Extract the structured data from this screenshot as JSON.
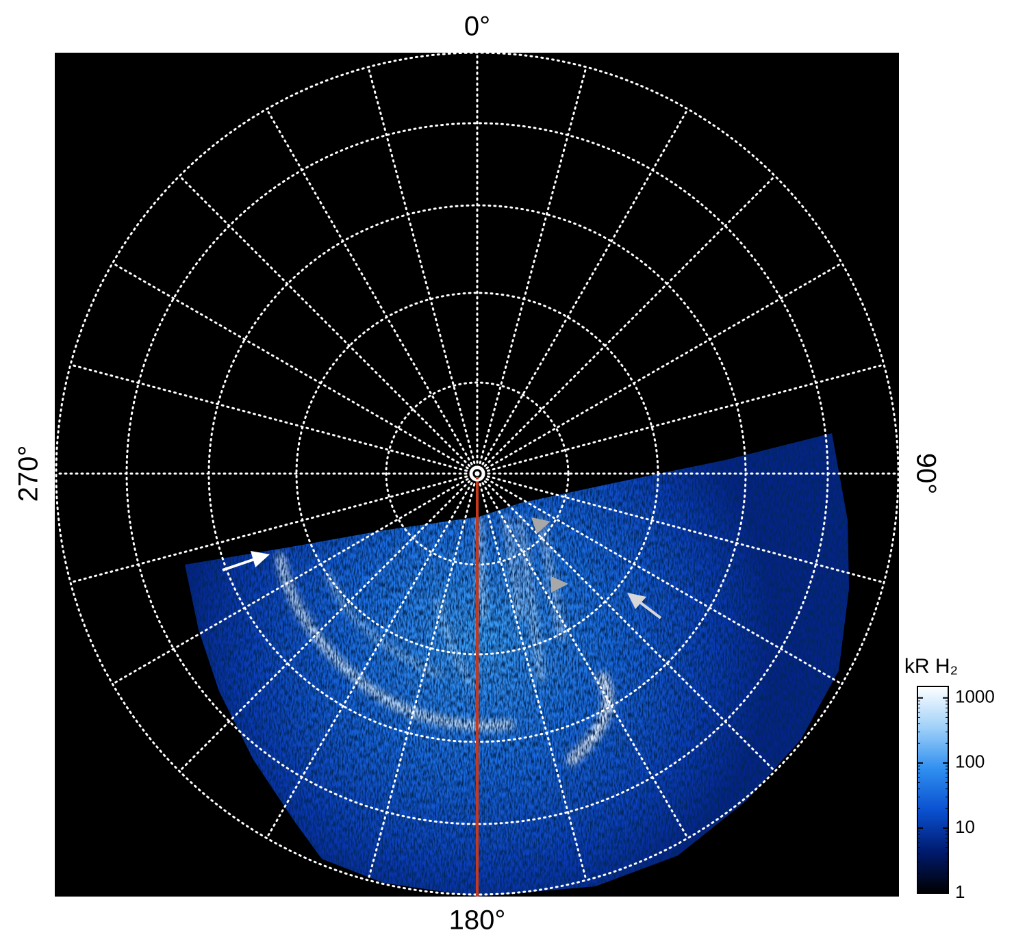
{
  "chart_data": {
    "type": "polar-image",
    "thetaticks": [
      {
        "value": 0,
        "label": "0°"
      },
      {
        "value": 90,
        "label": "90°"
      },
      {
        "value": 180,
        "label": "180°"
      },
      {
        "value": 270,
        "label": "270°"
      }
    ],
    "grid": true,
    "colorbar": {
      "title": "kR H₂",
      "lim": [
        1,
        1500
      ],
      "ticks": [
        1,
        10,
        100,
        1000
      ],
      "log": true,
      "colors": [
        "#000000",
        "#001a6e",
        "#0a50d0",
        "#2f8ff0",
        "#9fd0f8",
        "#ffffff"
      ]
    }
  }
}
